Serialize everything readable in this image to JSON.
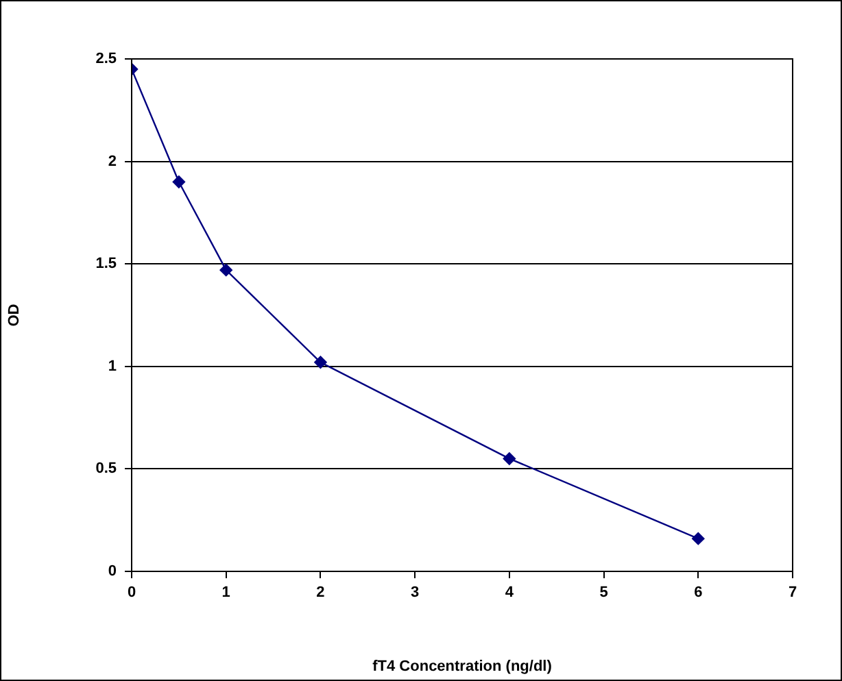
{
  "chart_data": {
    "type": "line",
    "xlabel": "fT4 Concentration (ng/dl)",
    "ylabel": "OD",
    "x": [
      0,
      0.5,
      1,
      2,
      4,
      6
    ],
    "series": [
      {
        "color": "#000080",
        "values": [
          2.45,
          1.9,
          1.47,
          1.02,
          0.55,
          0.16
        ]
      }
    ],
    "xlim": [
      0,
      7
    ],
    "xticks": [
      0,
      1,
      2,
      3,
      4,
      5,
      6,
      7
    ],
    "ylim": [
      0,
      2.5
    ],
    "yticks": [
      0,
      0.5,
      1,
      1.5,
      2,
      2.5
    ],
    "grid": "y",
    "legend": false,
    "marker": "diamond",
    "line_style": "solid"
  }
}
